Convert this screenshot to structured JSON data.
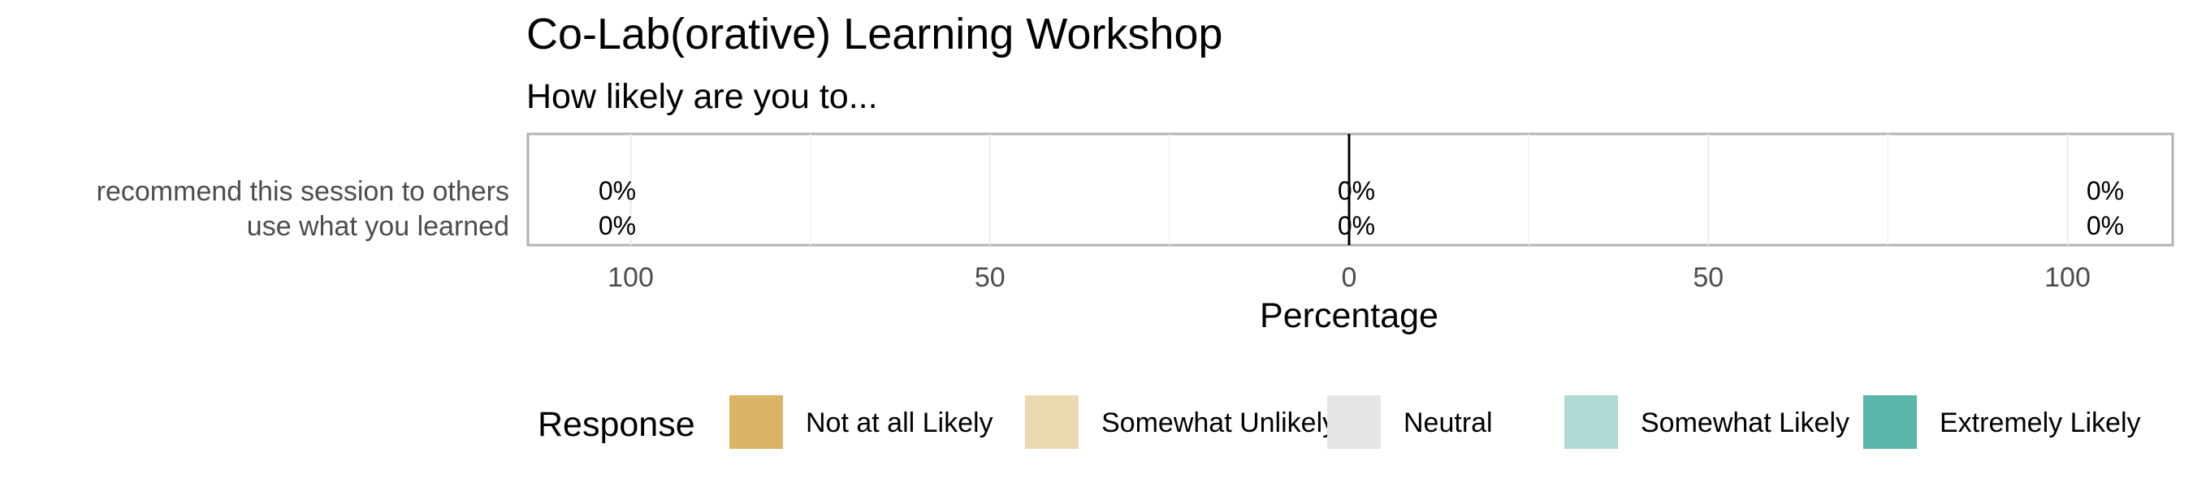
{
  "chart_data": {
    "type": "bar",
    "orientation": "horizontal-diverging",
    "title": "Co-Lab(orative) Learning Workshop",
    "subtitle": "How likely are you to...",
    "xlabel": "Percentage",
    "categories": [
      "recommend this session to others",
      "use what you learned"
    ],
    "xlim": [
      -115,
      115
    ],
    "xticks": [
      -100,
      -50,
      0,
      50,
      100
    ],
    "xtick_labels": [
      "100",
      "50",
      "0",
      "50",
      "100"
    ],
    "grid": true,
    "legend_position": "bottom",
    "legend_title": "Response",
    "series": [
      {
        "name": "Not at all Likely",
        "color": "#DBB365",
        "values": [
          0,
          0
        ]
      },
      {
        "name": "Somewhat Unlikely",
        "color": "#EBD9B2",
        "values": [
          0,
          0
        ]
      },
      {
        "name": "Neutral",
        "color": "#E5E5E5",
        "values": [
          0,
          0
        ]
      },
      {
        "name": "Somewhat Likely",
        "color": "#AED9D4",
        "values": [
          0,
          0
        ]
      },
      {
        "name": "Extremely Likely",
        "color": "#5BB5AA",
        "values": [
          0,
          0
        ]
      }
    ],
    "data_labels": {
      "left": [
        "0%",
        "0%"
      ],
      "center": [
        "0%",
        "0%"
      ],
      "right": [
        "0%",
        "0%"
      ]
    }
  }
}
